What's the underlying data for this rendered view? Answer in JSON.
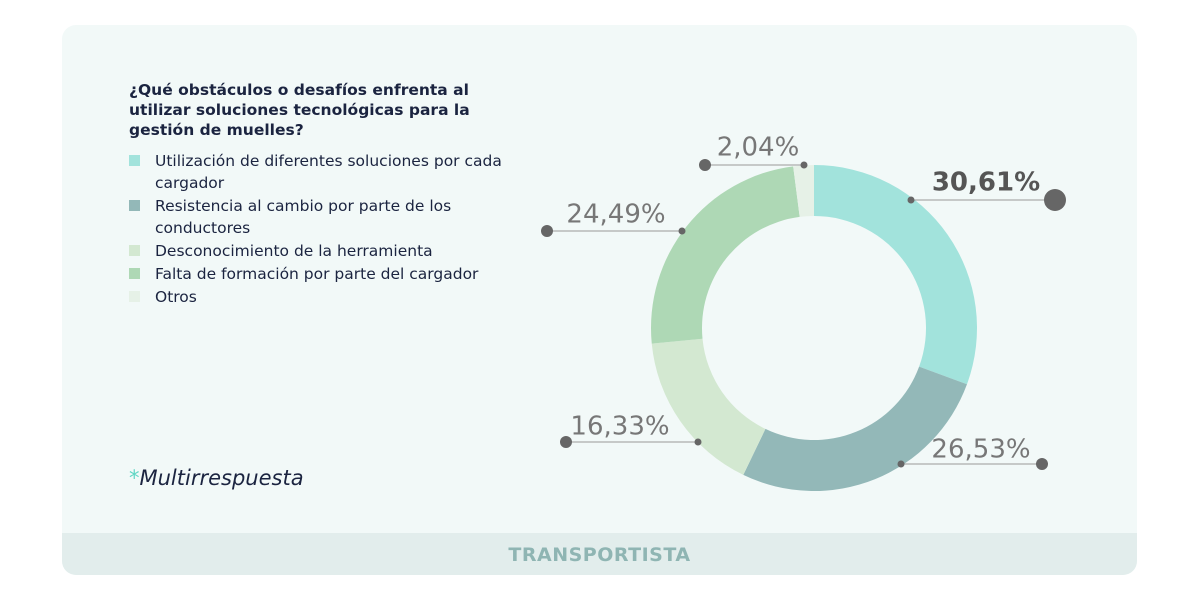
{
  "chart_data": {
    "type": "donut",
    "title": "¿Qué obstáculos o desafíos enfrenta al utilizar soluciones tecnológicas para la gestión de muelles?",
    "categories": [
      "Utilización de diferentes soluciones por cada cargador",
      "Resistencia al cambio por parte de los conductores",
      "Desconocimiento de la herramienta",
      "Falta de formación por parte del cargador",
      "Otros"
    ],
    "values": [
      30.61,
      26.53,
      16.33,
      24.49,
      2.04
    ],
    "value_labels": [
      "30,61%",
      "26,53%",
      "16,33%",
      "24,49%",
      "2,04%"
    ],
    "colors": [
      "#a2e3dc",
      "#93b8b8",
      "#d3e8d1",
      "#aed8b5",
      "#e6f1e7"
    ],
    "note_marker": "*",
    "note": "Multirrespuesta",
    "footer": "TRANSPORTISTA"
  }
}
